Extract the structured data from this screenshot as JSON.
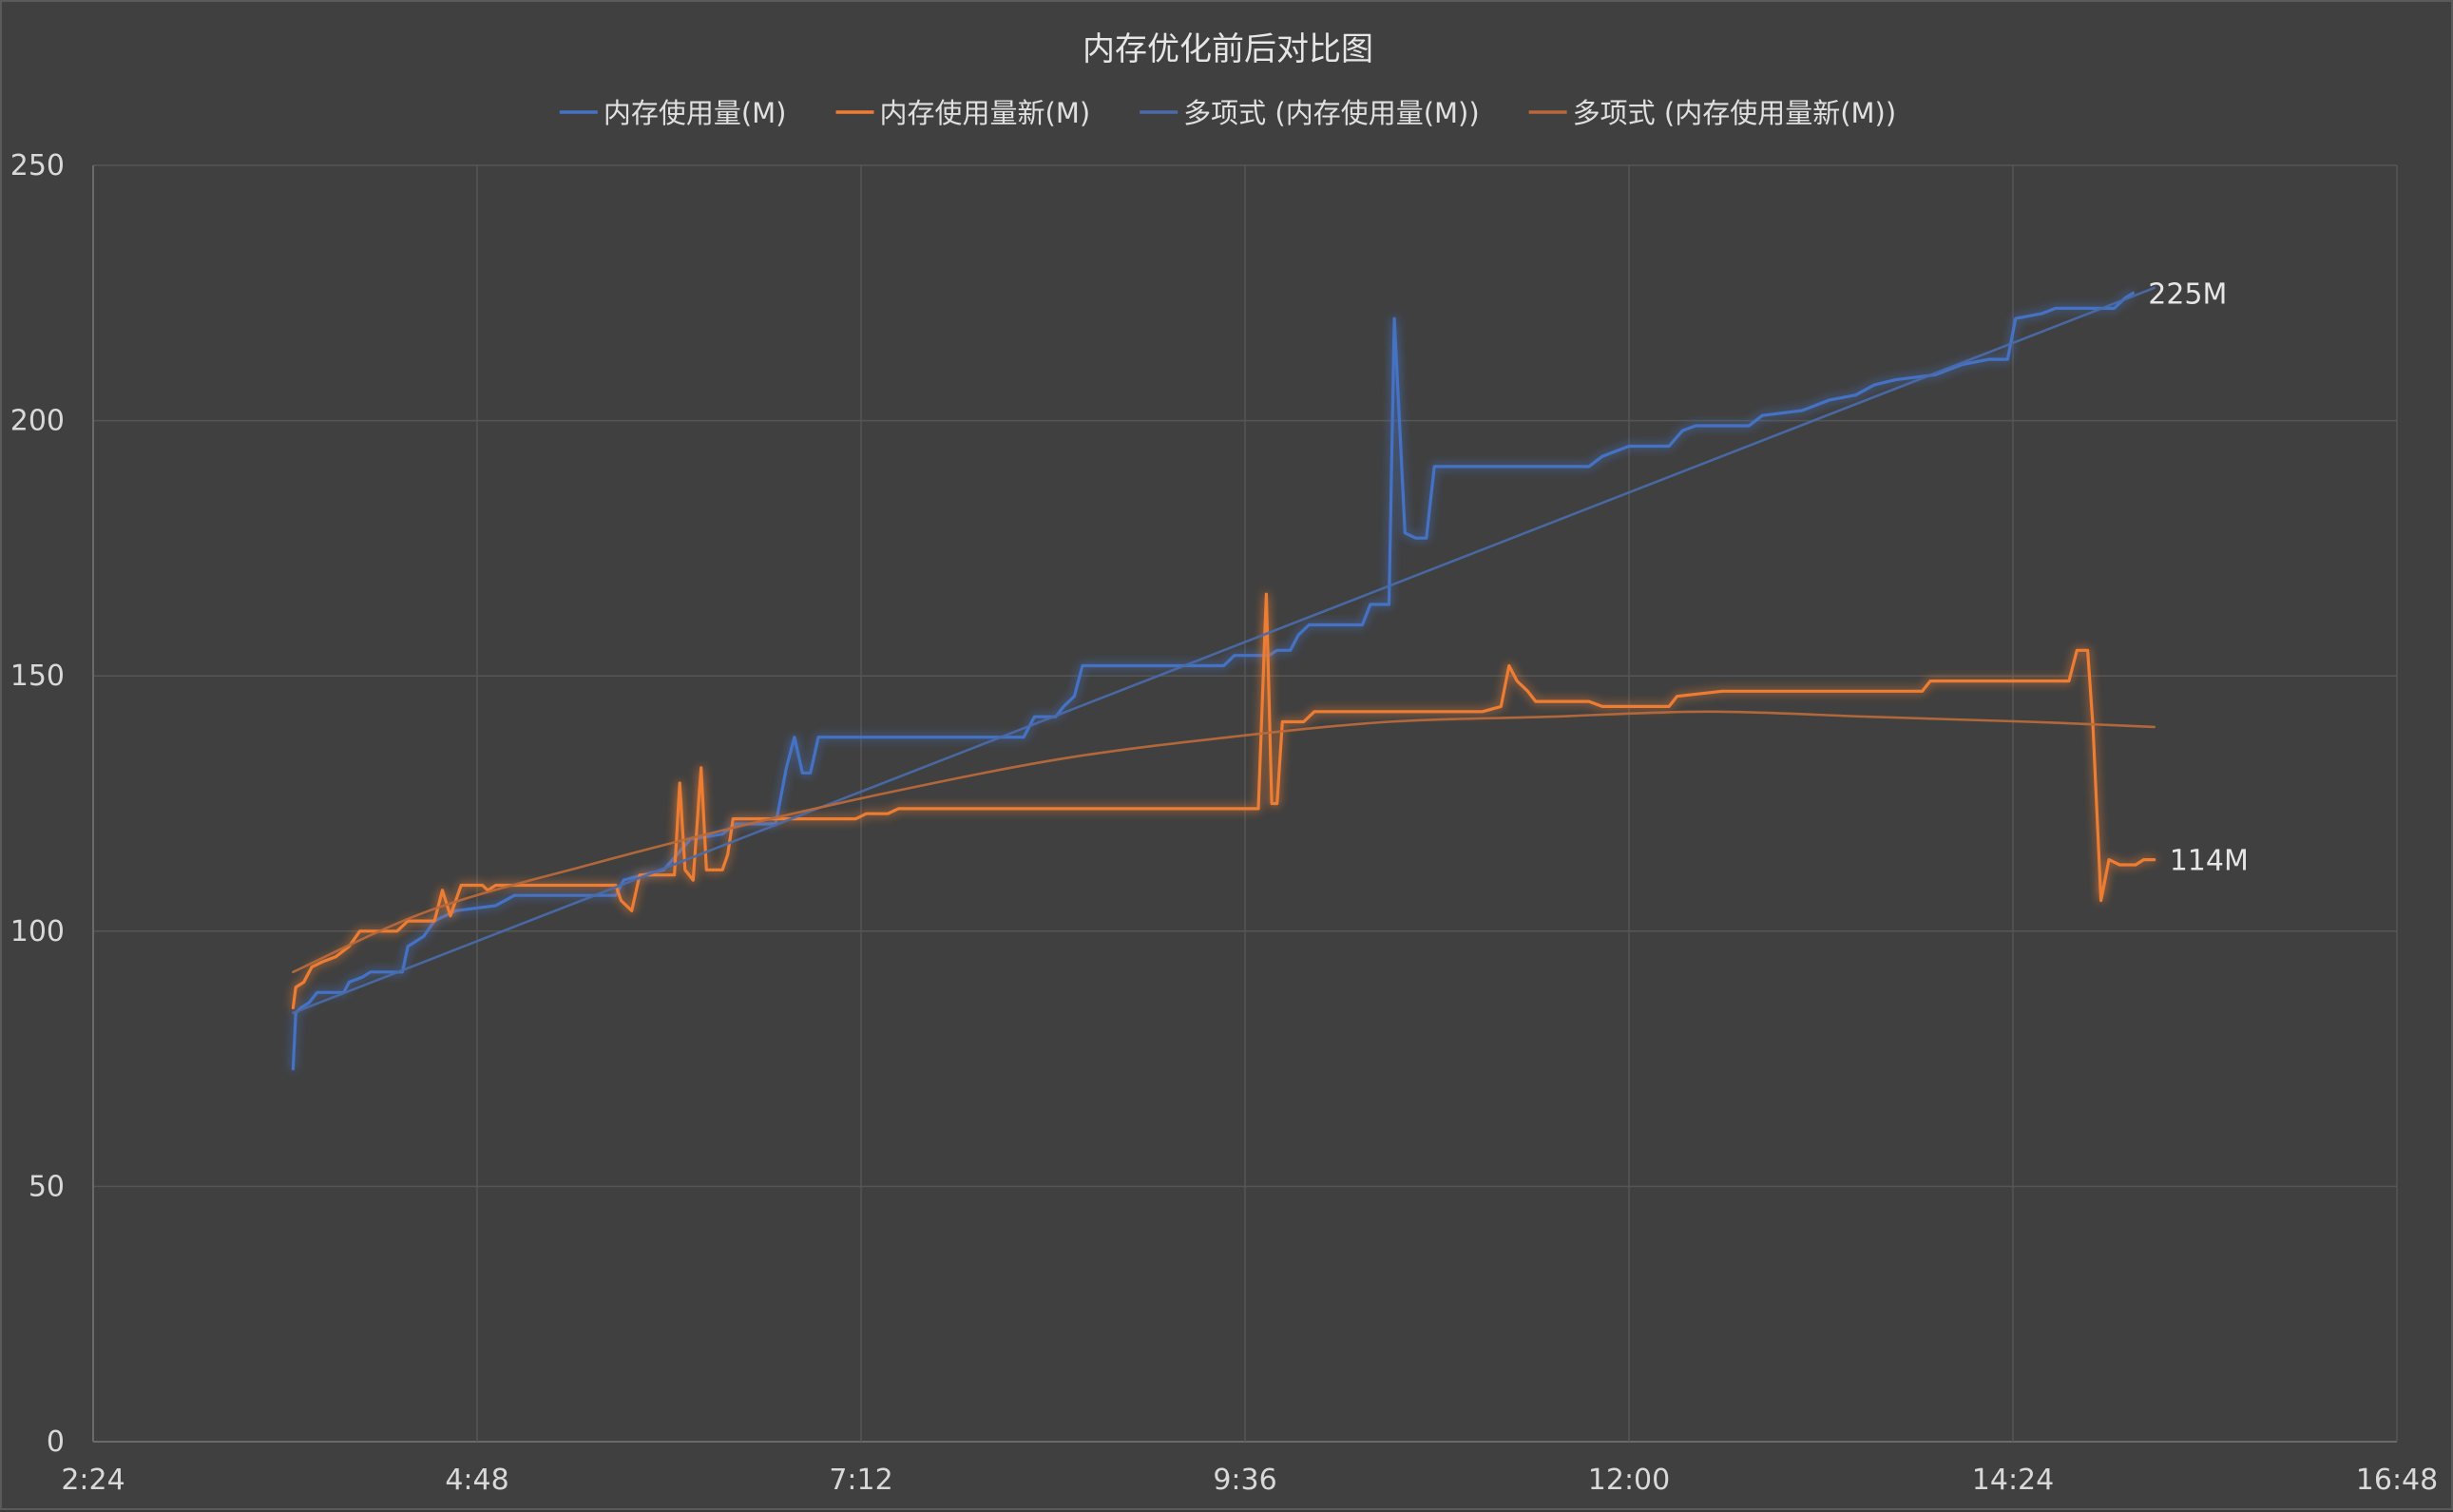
{
  "chart_data": {
    "type": "line",
    "title": "内存优化前后对比图",
    "xlabel": "",
    "ylabel": "",
    "x_unit": "time (h:mm)",
    "xlim": [
      "2:24",
      "16:48"
    ],
    "ylim": [
      0,
      250
    ],
    "x_ticks": [
      "2:24",
      "4:48",
      "7:12",
      "9:36",
      "12:00",
      "14:24",
      "16:48"
    ],
    "y_ticks": [
      "0",
      "50",
      "100",
      "150",
      "200",
      "250"
    ],
    "grid": true,
    "legend_position": "top",
    "series": [
      {
        "name": "内存使用量(M)",
        "color": "#4472c4",
        "style": "line-glow",
        "points": [
          [
            "3:39",
            73
          ],
          [
            "3:40",
            84
          ],
          [
            "3:42",
            85
          ],
          [
            "3:45",
            86
          ],
          [
            "3:48",
            88
          ],
          [
            "3:58",
            88
          ],
          [
            "4:00",
            90
          ],
          [
            "4:05",
            91
          ],
          [
            "4:08",
            92
          ],
          [
            "4:20",
            92
          ],
          [
            "4:22",
            97
          ],
          [
            "4:28",
            99
          ],
          [
            "4:32",
            102
          ],
          [
            "4:40",
            104
          ],
          [
            "4:55",
            105
          ],
          [
            "5:02",
            107
          ],
          [
            "5:40",
            107
          ],
          [
            "5:43",
            110
          ],
          [
            "5:50",
            111
          ],
          [
            "5:58",
            112
          ],
          [
            "6:03",
            115
          ],
          [
            "6:08",
            118
          ],
          [
            "6:20",
            119
          ],
          [
            "6:25",
            121
          ],
          [
            "6:40",
            121
          ],
          [
            "6:44",
            132
          ],
          [
            "6:47",
            138
          ],
          [
            "6:50",
            131
          ],
          [
            "6:53",
            131
          ],
          [
            "6:56",
            138
          ],
          [
            "8:13",
            138
          ],
          [
            "8:17",
            142
          ],
          [
            "8:25",
            142
          ],
          [
            "8:28",
            144
          ],
          [
            "8:32",
            146
          ],
          [
            "8:35",
            152
          ],
          [
            "9:28",
            152
          ],
          [
            "9:32",
            154
          ],
          [
            "9:45",
            154
          ],
          [
            "9:48",
            155
          ],
          [
            "9:53",
            155
          ],
          [
            "9:56",
            158
          ],
          [
            "10:00",
            160
          ],
          [
            "10:20",
            160
          ],
          [
            "10:23",
            164
          ],
          [
            "10:30",
            164
          ],
          [
            "10:32",
            220
          ],
          [
            "10:36",
            178
          ],
          [
            "10:40",
            177
          ],
          [
            "10:44",
            177
          ],
          [
            "10:47",
            191
          ],
          [
            "11:45",
            191
          ],
          [
            "11:50",
            193
          ],
          [
            "12:00",
            195
          ],
          [
            "12:15",
            195
          ],
          [
            "12:20",
            198
          ],
          [
            "12:25",
            199
          ],
          [
            "12:45",
            199
          ],
          [
            "12:50",
            201
          ],
          [
            "13:05",
            202
          ],
          [
            "13:15",
            204
          ],
          [
            "13:25",
            205
          ],
          [
            "13:32",
            207
          ],
          [
            "13:40",
            208
          ],
          [
            "13:55",
            209
          ],
          [
            "14:05",
            211
          ],
          [
            "14:15",
            212
          ],
          [
            "14:22",
            212
          ],
          [
            "14:25",
            220
          ],
          [
            "14:35",
            221
          ],
          [
            "14:40",
            222
          ],
          [
            "15:02",
            222
          ],
          [
            "15:06",
            224
          ],
          [
            "15:09",
            225
          ]
        ]
      },
      {
        "name": "内存使用量新(M)",
        "color": "#ed7d31",
        "style": "line-glow",
        "points": [
          [
            "3:39",
            85
          ],
          [
            "3:40",
            89
          ],
          [
            "3:43",
            90
          ],
          [
            "3:46",
            93
          ],
          [
            "3:50",
            94
          ],
          [
            "3:55",
            95
          ],
          [
            "4:00",
            97
          ],
          [
            "4:04",
            100
          ],
          [
            "4:18",
            100
          ],
          [
            "4:22",
            102
          ],
          [
            "4:32",
            102
          ],
          [
            "4:35",
            108
          ],
          [
            "4:38",
            103
          ],
          [
            "4:42",
            109
          ],
          [
            "4:50",
            109
          ],
          [
            "4:52",
            108
          ],
          [
            "4:55",
            109
          ],
          [
            "5:40",
            109
          ],
          [
            "5:42",
            106
          ],
          [
            "5:46",
            104
          ],
          [
            "5:49",
            111
          ],
          [
            "6:02",
            111
          ],
          [
            "6:04",
            129
          ],
          [
            "6:06",
            112
          ],
          [
            "6:09",
            110
          ],
          [
            "6:12",
            132
          ],
          [
            "6:14",
            112
          ],
          [
            "6:20",
            112
          ],
          [
            "6:22",
            115
          ],
          [
            "6:24",
            122
          ],
          [
            "7:10",
            122
          ],
          [
            "7:14",
            123
          ],
          [
            "7:22",
            123
          ],
          [
            "7:26",
            124
          ],
          [
            "9:41",
            124
          ],
          [
            "9:44",
            166
          ],
          [
            "9:46",
            125
          ],
          [
            "9:48",
            125
          ],
          [
            "9:50",
            141
          ],
          [
            "9:58",
            141
          ],
          [
            "10:02",
            143
          ],
          [
            "11:05",
            143
          ],
          [
            "11:12",
            144
          ],
          [
            "11:15",
            152
          ],
          [
            "11:18",
            149
          ],
          [
            "11:22",
            147
          ],
          [
            "11:25",
            145
          ],
          [
            "11:45",
            145
          ],
          [
            "11:50",
            144
          ],
          [
            "12:15",
            144
          ],
          [
            "12:18",
            146
          ],
          [
            "12:35",
            147
          ],
          [
            "13:50",
            147
          ],
          [
            "13:53",
            149
          ],
          [
            "14:45",
            149
          ],
          [
            "14:48",
            155
          ],
          [
            "14:52",
            155
          ],
          [
            "14:54",
            140
          ],
          [
            "14:57",
            106
          ],
          [
            "15:00",
            114
          ],
          [
            "15:04",
            113
          ],
          [
            "15:07",
            113
          ],
          [
            "15:10",
            113
          ],
          [
            "15:13",
            114
          ],
          [
            "15:17",
            114
          ]
        ]
      },
      {
        "name": "多项式 (内存使用量(M))",
        "color": "#4a6aa8",
        "style": "trend",
        "poly": {
          "x0": "3:39",
          "x1": "15:17",
          "y0": 84,
          "y1": 226,
          "curve": 0
        }
      },
      {
        "name": "多项式 (内存使用量新(M))",
        "color": "#b8693a",
        "style": "trend",
        "poly_points": [
          [
            "3:39",
            92
          ],
          [
            "4:30",
            104
          ],
          [
            "5:30",
            113
          ],
          [
            "6:30",
            121
          ],
          [
            "7:30",
            128
          ],
          [
            "8:30",
            134
          ],
          [
            "9:30",
            138
          ],
          [
            "10:30",
            141
          ],
          [
            "11:30",
            142
          ],
          [
            "12:30",
            143
          ],
          [
            "13:30",
            142
          ],
          [
            "14:30",
            141
          ],
          [
            "15:17",
            140
          ]
        ]
      }
    ],
    "annotations": [
      {
        "text": "225M",
        "series": 0
      },
      {
        "text": "114M",
        "series": 1
      }
    ]
  }
}
